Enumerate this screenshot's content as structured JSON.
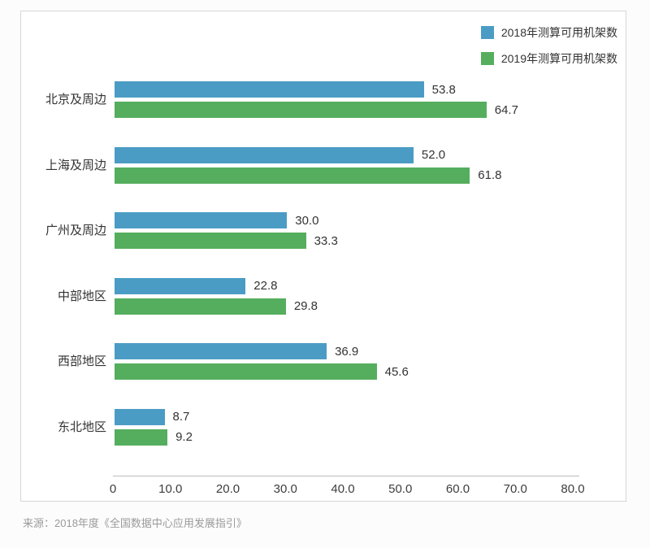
{
  "chart_data": {
    "type": "bar",
    "orientation": "horizontal",
    "title": "",
    "categories": [
      "北京及周边",
      "上海及周边",
      "广州及周边",
      "中部地区",
      "西部地区",
      "东北地区"
    ],
    "series": [
      {
        "name": "2018年测算可用机架数",
        "color": "#4a9cc4",
        "values": [
          53.8,
          52.0,
          30.0,
          22.8,
          36.9,
          8.7
        ]
      },
      {
        "name": "2019年测算可用机架数",
        "color": "#55ae5e",
        "values": [
          64.7,
          61.8,
          33.3,
          29.8,
          45.6,
          9.2
        ]
      }
    ],
    "xlim": [
      0,
      80
    ],
    "xticks": [
      "0",
      "10.0",
      "20.0",
      "30.0",
      "40.0",
      "50.0",
      "60.0",
      "70.0",
      "80.0"
    ],
    "value_label_decimals": 1,
    "legend_position": "top-right",
    "grid": false
  },
  "source_note": "来源：2018年度《全国数据中心应用发展指引》",
  "colors": {
    "series_2018": "#4a9cc4",
    "series_2019": "#55ae5e",
    "axis_line": "#bdbdbd",
    "card_border": "#d6d6d6",
    "label_text": "#333333",
    "source_text": "#9a9a9a"
  }
}
